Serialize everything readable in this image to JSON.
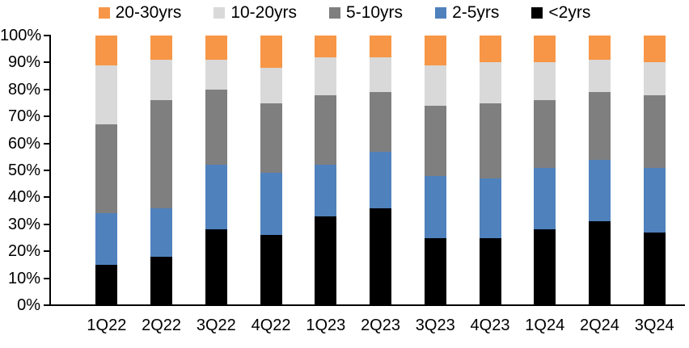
{
  "chart_data": {
    "type": "bar",
    "stacked": true,
    "percent_stacked": true,
    "title": "",
    "xlabel": "",
    "ylabel": "",
    "legend_position": "top",
    "grid": false,
    "categories": [
      "1Q22",
      "2Q22",
      "3Q22",
      "4Q22",
      "1Q23",
      "2Q23",
      "3Q23",
      "4Q23",
      "1Q24",
      "2Q24",
      "3Q24"
    ],
    "series": [
      {
        "name": "20-30yrs",
        "color": "#F79646",
        "values": [
          11,
          9,
          9,
          12,
          8,
          8,
          11,
          10,
          10,
          9,
          10
        ]
      },
      {
        "name": "10-20yrs",
        "color": "#D9D9D9",
        "values": [
          22,
          15,
          11,
          13,
          14,
          13,
          15,
          15,
          14,
          12,
          12
        ]
      },
      {
        "name": "5-10yrs",
        "color": "#7F7F7F",
        "values": [
          33,
          40,
          28,
          26,
          26,
          22,
          26,
          28,
          25,
          25,
          27
        ]
      },
      {
        "name": "2-5yrs",
        "color": "#4F81BD",
        "values": [
          19,
          18,
          24,
          23,
          19,
          21,
          23,
          22,
          23,
          23,
          24
        ]
      },
      {
        "name": "<2yrs",
        "color": "#000000",
        "values": [
          15,
          18,
          28,
          26,
          33,
          36,
          25,
          25,
          28,
          31,
          27
        ]
      }
    ],
    "stack_order_note": "series listed top-of-stack first; last series (<2yrs) is at the bottom of each bar",
    "y_axis": {
      "min": 0,
      "max": 100,
      "tick_step": 10,
      "tick_labels_top_to_bottom": [
        "100%",
        "90%",
        "80%",
        "70%",
        "60%",
        "50%",
        "40%",
        "30%",
        "20%",
        "10%",
        "0%"
      ]
    }
  },
  "colors": {
    "background": "#FFFFFF",
    "axis": "#000000",
    "text": "#000000"
  }
}
